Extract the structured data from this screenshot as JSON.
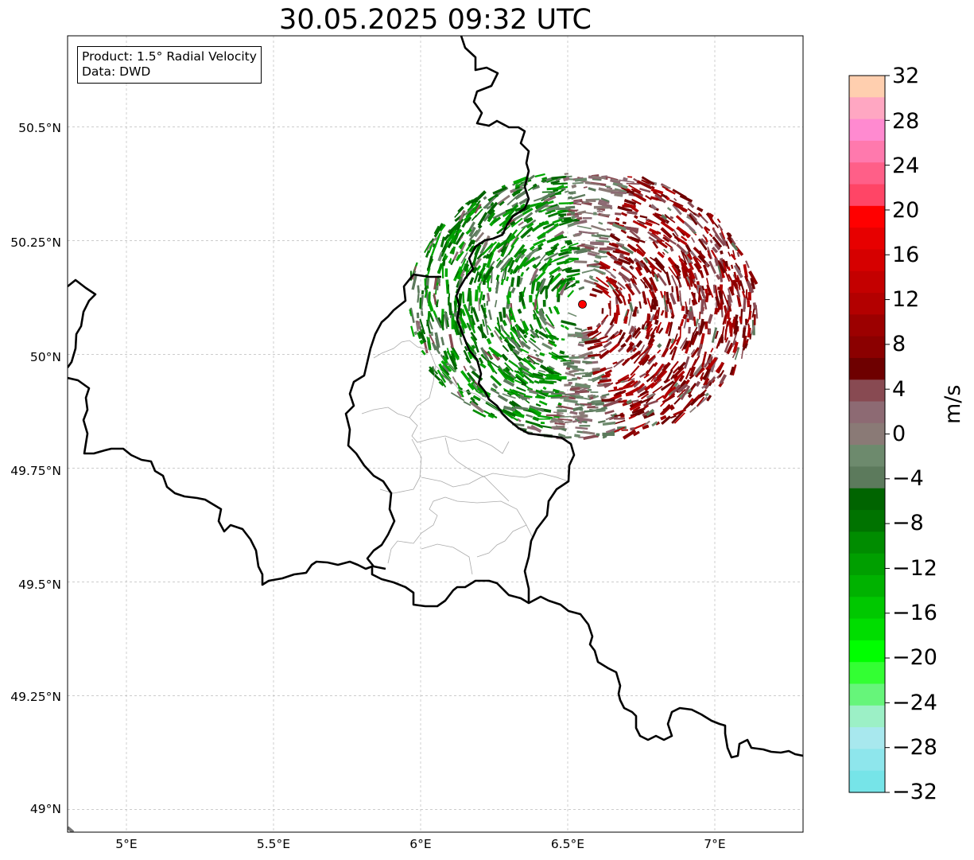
{
  "title": "30.05.2025 09:32 UTC",
  "info_box": {
    "product": "Product: 1.5° Radial Velocity",
    "data": "Data: DWD"
  },
  "map": {
    "x_range": [
      4.8,
      7.3
    ],
    "y_range": [
      48.95,
      50.7
    ],
    "lat_labels": [
      {
        "lat": 50.5,
        "text": "50.5°N"
      },
      {
        "lat": 50.25,
        "text": "50.25°N"
      },
      {
        "lat": 50.0,
        "text": "50°N"
      },
      {
        "lat": 49.75,
        "text": "49.75°N"
      },
      {
        "lat": 49.5,
        "text": "49.5°N"
      },
      {
        "lat": 49.25,
        "text": "49.25°N"
      },
      {
        "lat": 49.0,
        "text": "49°N"
      }
    ],
    "lon_labels": [
      {
        "lon": 5.0,
        "text": "5°E"
      },
      {
        "lon": 5.5,
        "text": "5.5°E"
      },
      {
        "lon": 6.0,
        "text": "6°E"
      },
      {
        "lon": 6.5,
        "text": "6.5°E"
      },
      {
        "lon": 7.0,
        "text": "7°E"
      }
    ],
    "gridlines": true,
    "radar_site": {
      "lon": 6.55,
      "lat": 50.11,
      "color": "#ff0000"
    },
    "colors": {
      "border": "#000000",
      "admin": "#aaaaaa",
      "grid": "#bbbbbb"
    }
  },
  "colorbar": {
    "label": "m/s",
    "min": -32,
    "max": 32,
    "tick_labels": [
      "32",
      "28",
      "24",
      "20",
      "16",
      "12",
      "8",
      "4",
      "0",
      "−4",
      "−8",
      "−12",
      "−16",
      "−20",
      "−24",
      "−28",
      "−32"
    ],
    "colors_top_to_bottom": [
      "#ffcfaf",
      "#ffa7c2",
      "#ff8ad0",
      "#ff79ad",
      "#ff5f88",
      "#ff4566",
      "#ff0000",
      "#e70000",
      "#d60000",
      "#c40000",
      "#b30000",
      "#9c0000",
      "#8b0000",
      "#6e0000",
      "#884a52",
      "#8d6a73",
      "#8a7a76",
      "#6d8a6d",
      "#5c7a5c",
      "#006400",
      "#007300",
      "#008c00",
      "#009f00",
      "#00b200",
      "#00c800",
      "#00dd00",
      "#00ff00",
      "#33ff33",
      "#66f57a",
      "#9cf0c6",
      "#a8e8ee",
      "#8ee6ec",
      "#76e4e8"
    ]
  }
}
